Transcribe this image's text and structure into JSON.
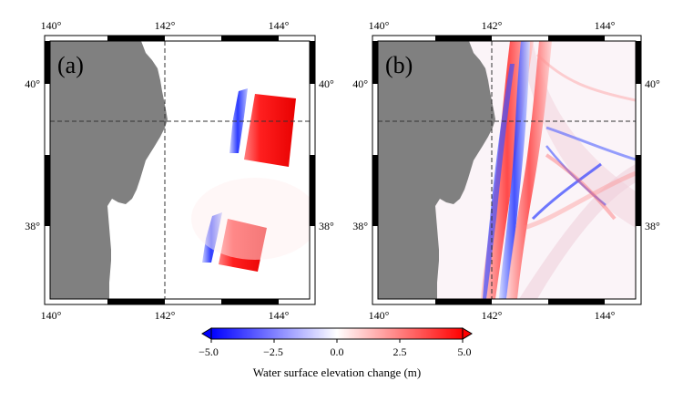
{
  "panels": [
    {
      "id": "a",
      "label": "(a)",
      "lon_ticks": [
        "140°",
        "142°",
        "144°"
      ],
      "lat_ticks": [
        "40°",
        "38°"
      ]
    },
    {
      "id": "b",
      "label": "(b)",
      "lon_ticks": [
        "140°",
        "142°",
        "144°"
      ],
      "lat_ticks": [
        "40°",
        "38°"
      ]
    }
  ],
  "colorbar": {
    "ticks": [
      "−5.0",
      "−2.5",
      "0.0",
      "2.5",
      "5.0"
    ],
    "title": "Water surface elevation change (m)",
    "min_color": "#0000ff",
    "mid_color": "#ffffff",
    "max_color": "#ff0000"
  },
  "colors": {
    "land": "#808080",
    "uplift": "#ff2020",
    "subsidence": "#2030ff",
    "frame_dark": "#000000",
    "frame_light": "#ffffff"
  }
}
